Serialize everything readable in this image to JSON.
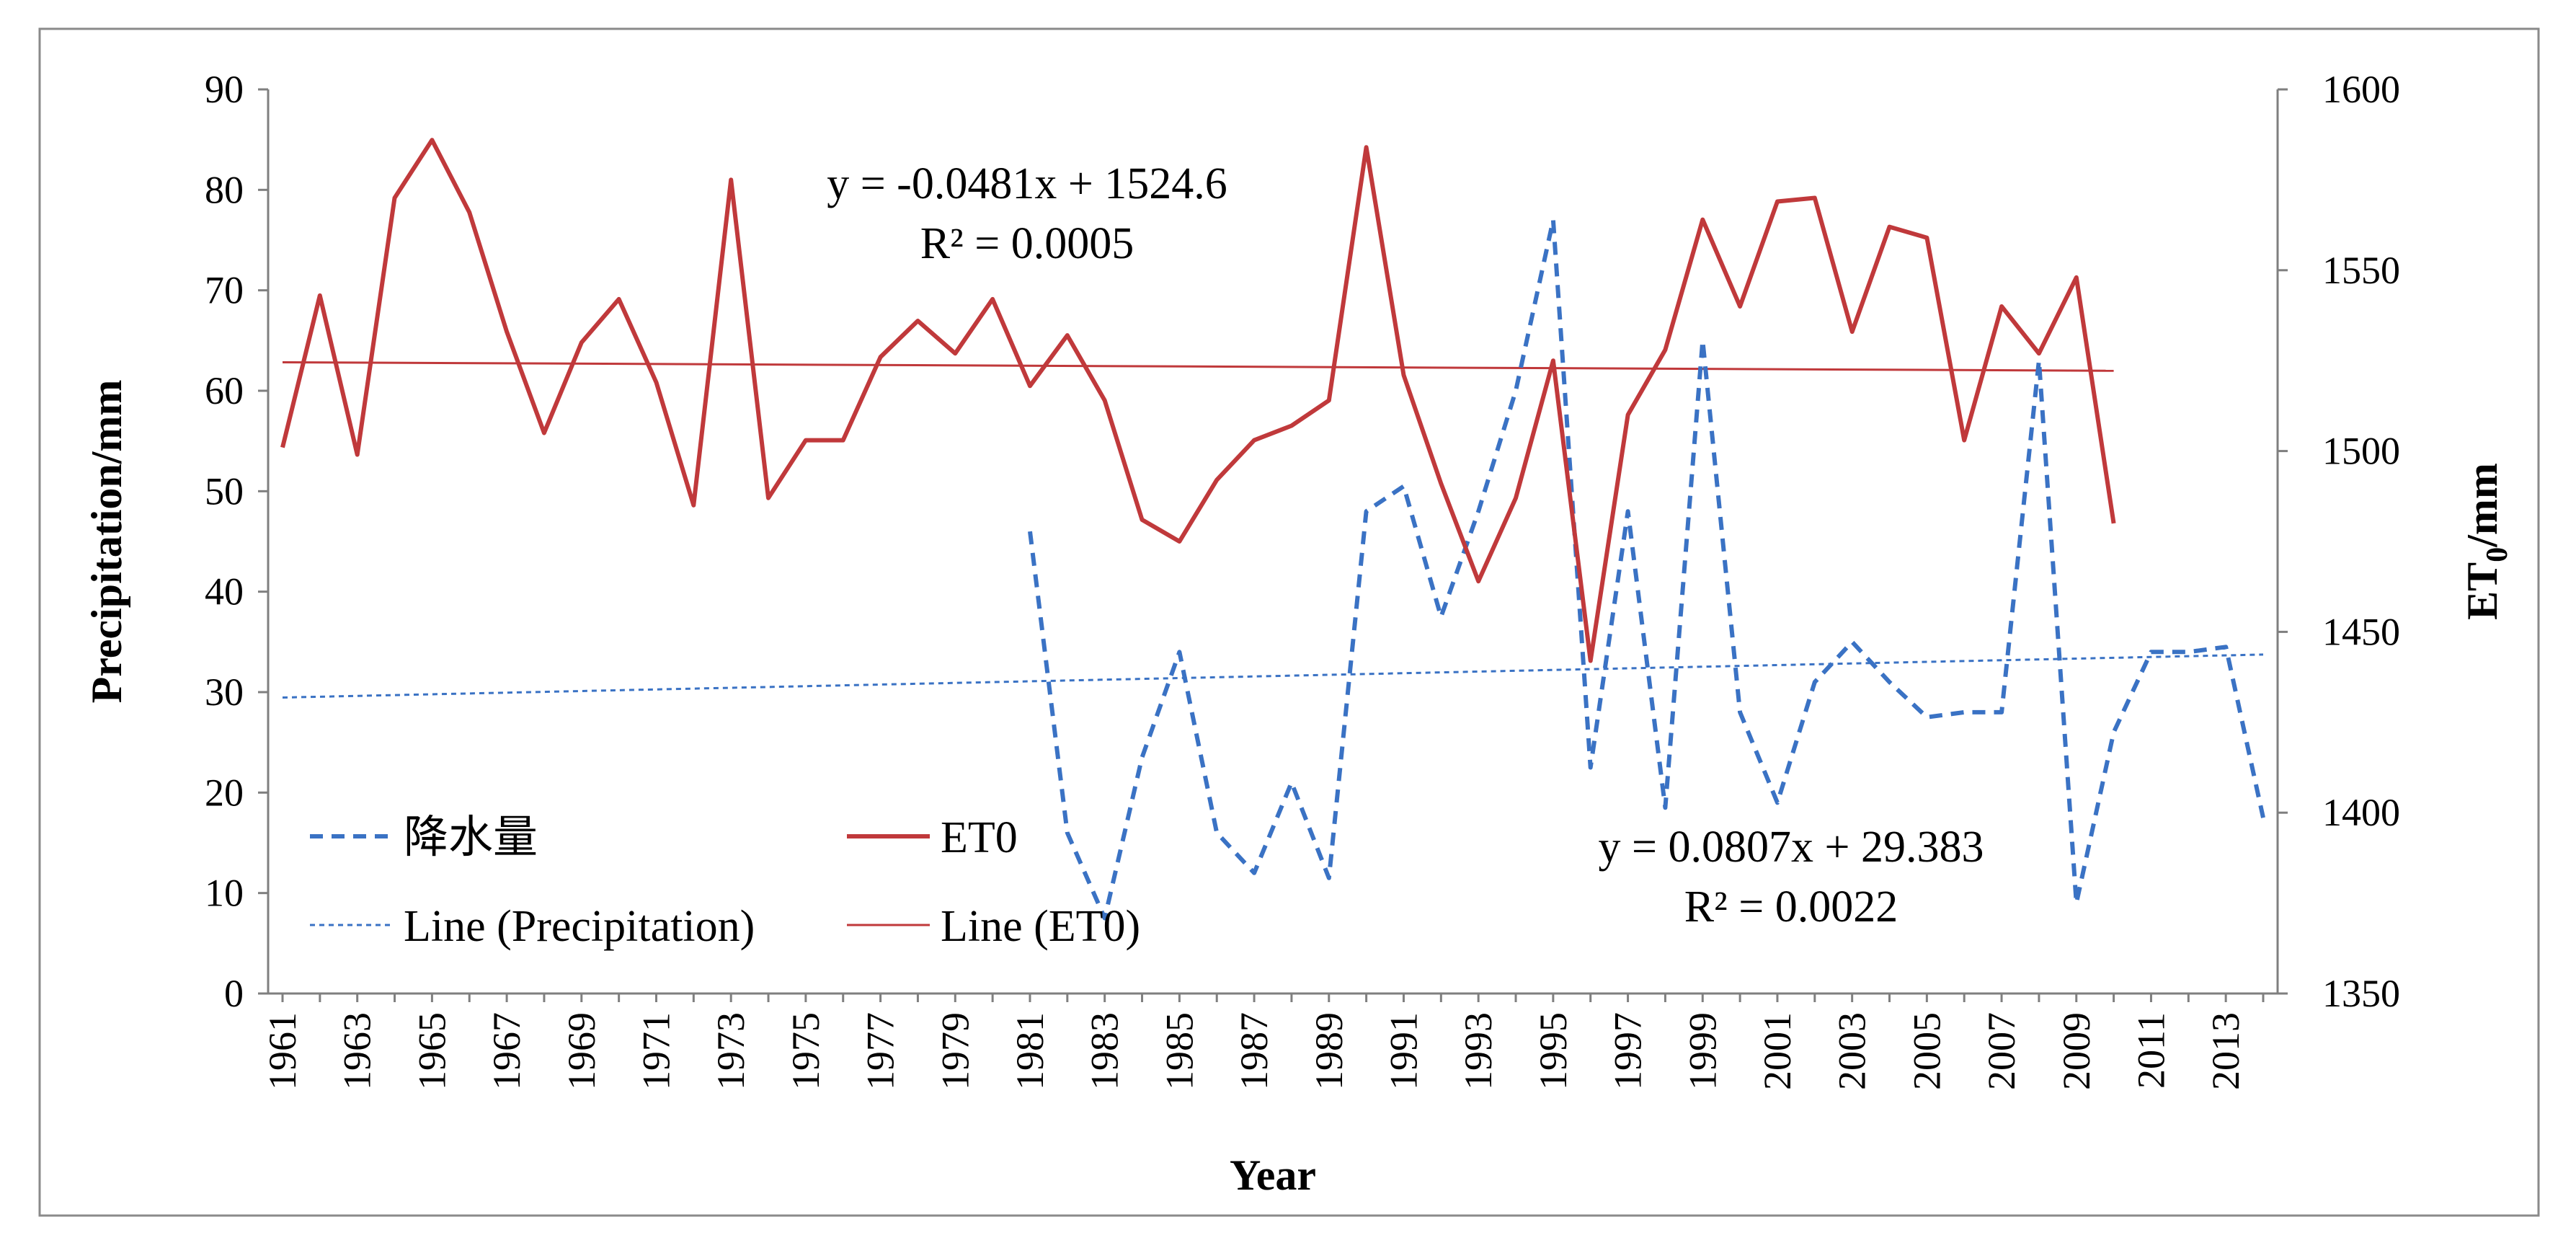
{
  "chart_data": {
    "type": "line",
    "title": "",
    "xlabel": "Year",
    "ylabel": "Precipitation/mm",
    "y2label_main": "ET",
    "y2label_sub": "0",
    "y2label_tail": "/mm",
    "xlim": [
      1961,
      2014
    ],
    "ylim": [
      0,
      90
    ],
    "y2lim": [
      1350,
      1600
    ],
    "x_ticks": [
      1961,
      1963,
      1965,
      1967,
      1969,
      1971,
      1973,
      1975,
      1977,
      1979,
      1981,
      1983,
      1985,
      1987,
      1989,
      1991,
      1993,
      1995,
      1997,
      1999,
      2001,
      2003,
      2005,
      2007,
      2009,
      2011,
      2013
    ],
    "y_ticks": [
      0,
      10,
      20,
      30,
      40,
      50,
      60,
      70,
      80,
      90
    ],
    "y2_ticks": [
      1350,
      1400,
      1450,
      1500,
      1550,
      1600
    ],
    "grid": false,
    "series": [
      {
        "name": "降水量",
        "axis": "left",
        "style": "dashed",
        "color": "#3a72c4",
        "x": [
          1981,
          1982,
          1983,
          1984,
          1985,
          1986,
          1987,
          1988,
          1989,
          1990,
          1991,
          1992,
          1993,
          1994,
          1995,
          1996,
          1997,
          1998,
          1999,
          2000,
          2001,
          2002,
          2003,
          2004,
          2005,
          2006,
          2007,
          2008,
          2009,
          2010,
          2011,
          2012,
          2013,
          2014
        ],
        "values": [
          46,
          16,
          7.5,
          23.5,
          34,
          16,
          12,
          21,
          11.5,
          48,
          50.5,
          37.5,
          48,
          60,
          77,
          22.5,
          48,
          18.5,
          65,
          28,
          19,
          31,
          35,
          31,
          27.5,
          28,
          28,
          63,
          9,
          26,
          34,
          34,
          34.5,
          17.5
        ]
      },
      {
        "name": "ET0",
        "axis": "right",
        "style": "solid",
        "color": "#c0393b",
        "x": [
          1961,
          1962,
          1963,
          1964,
          1965,
          1966,
          1967,
          1968,
          1969,
          1970,
          1971,
          1972,
          1973,
          1974,
          1975,
          1976,
          1977,
          1978,
          1979,
          1980,
          1981,
          1982,
          1983,
          1984,
          1985,
          1986,
          1987,
          1988,
          1989,
          1990,
          1991,
          1992,
          1993,
          1994,
          1995,
          1996,
          1997,
          1998,
          1999,
          2000,
          2001,
          2002,
          2003,
          2004,
          2005,
          2006,
          2007,
          2008,
          2009,
          2010
        ],
        "values": [
          1501,
          1543,
          1499,
          1570,
          1586,
          1566,
          1533,
          1505,
          1530,
          1542,
          1519,
          1485,
          1575,
          1487,
          1503,
          1503,
          1526,
          1536,
          1527,
          1542,
          1518,
          1532,
          1514,
          1481,
          1475,
          1492,
          1503,
          1507,
          1514,
          1584,
          1521,
          1491,
          1464,
          1487,
          1525,
          1442,
          1510,
          1528,
          1564,
          1540,
          1569,
          1570,
          1533,
          1562,
          1559,
          1503,
          1540,
          1527,
          1548,
          1480
        ]
      }
    ],
    "trendlines": [
      {
        "name": "Line (Precipitation)",
        "axis": "left",
        "style": "dotted",
        "color": "#3a72c4",
        "x_range": [
          1961,
          2014
        ],
        "slope": 0.0807,
        "intercept": 29.383,
        "equation": "y = 0.0807x + 29.383",
        "r2": "R² = 0.0022"
      },
      {
        "name": "Line (ET0)",
        "axis": "right",
        "style": "solid-thin",
        "color": "#c0393b",
        "x_range": [
          1961,
          2010
        ],
        "slope": -0.0481,
        "intercept": 1524.6,
        "equation": "y = -0.0481x + 1524.6",
        "r2": "R² = 0.0005"
      }
    ],
    "legend": {
      "placement": "lower-left",
      "entries": [
        "降水量",
        "ET0",
        "Line (Precipitation)",
        "Line (ET0)"
      ]
    }
  }
}
